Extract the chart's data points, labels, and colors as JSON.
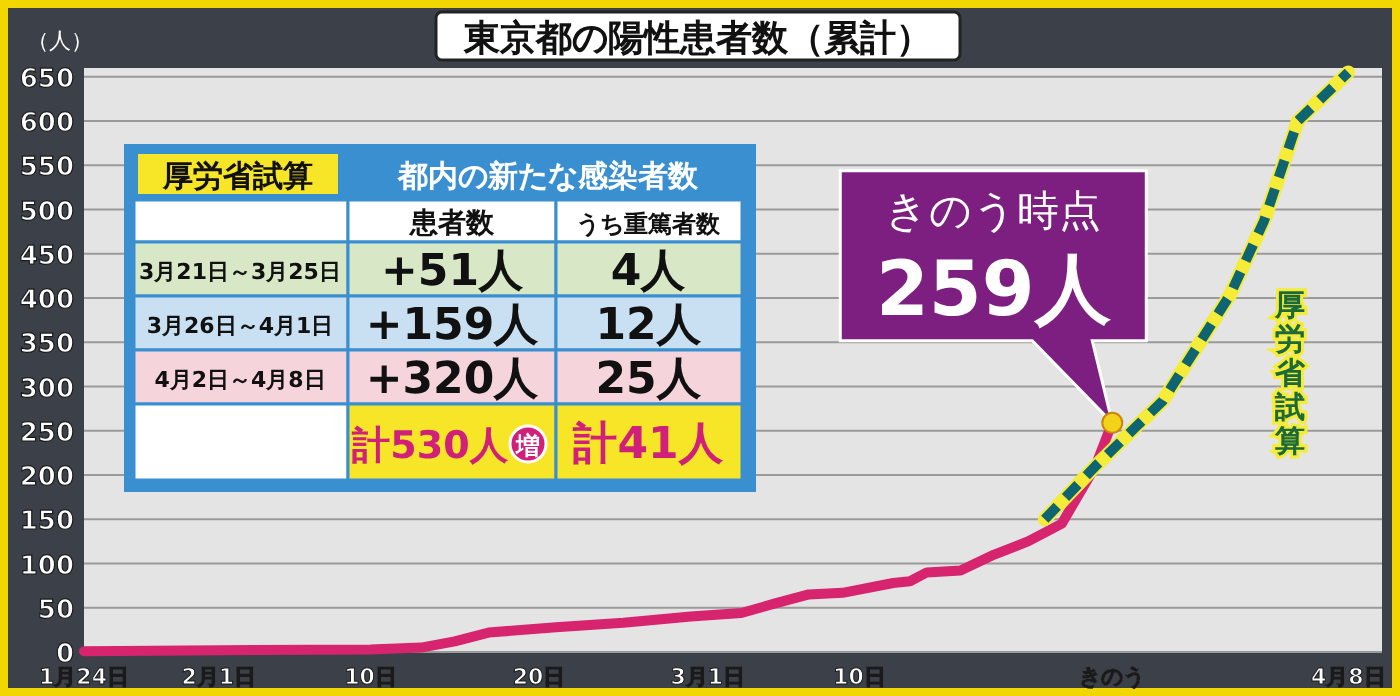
{
  "chart_data": {
    "type": "line",
    "title": "東京都の陽性患者数（累計）",
    "ylabel": "（人）",
    "xlim": [
      "--01-24",
      "--04-10"
    ],
    "xticks": [
      {
        "value": "--01-24",
        "label": "1月24日"
      },
      {
        "value": "--02-01",
        "label": "2月1日"
      },
      {
        "value": "--02-10",
        "label": "10日"
      },
      {
        "value": "--02-20",
        "label": "20日"
      },
      {
        "value": "--03-01",
        "label": "3月1日"
      },
      {
        "value": "--03-10",
        "label": "10日"
      },
      {
        "value": "--03-25",
        "label": "きのう"
      },
      {
        "value": "--04-08",
        "label": "4月8日"
      }
    ],
    "ylim": [
      0,
      660
    ],
    "yticks": [
      0,
      50,
      100,
      150,
      200,
      250,
      300,
      350,
      400,
      450,
      500,
      550,
      600,
      650
    ],
    "grid": "y",
    "series": [
      {
        "color": "#d6246e",
        "line_style": "solid",
        "x": [
          "--01-24",
          "--02-01",
          "--02-10",
          "--02-13",
          "--02-15",
          "--02-17",
          "--02-21",
          "--02-25",
          "--02-29",
          "--03-03",
          "--03-05",
          "--03-07",
          "--03-09",
          "--03-12",
          "--03-13",
          "--03-14",
          "--03-16",
          "--03-18",
          "--03-20",
          "--03-21",
          "--03-22",
          "--03-24",
          "--03-25"
        ],
        "values": [
          1,
          2,
          3,
          5,
          12,
          22,
          28,
          33,
          40,
          44,
          55,
          65,
          67,
          78,
          80,
          90,
          92,
          110,
          125,
          135,
          145,
          210,
          259
        ]
      },
      {
        "name": "厚労省試算",
        "color": "#0e6470",
        "line_style": "dashed",
        "x": [
          "--03-21",
          "--03-24",
          "--03-28",
          "--04-01",
          "--04-03",
          "--04-05",
          "--04-08"
        ],
        "values": [
          150,
          210,
          284,
          404,
          487,
          600,
          655
        ]
      }
    ],
    "annotations": [
      "厚労省試算",
      "都内の新たな感染者数",
      "患者数",
      "うち重篤者数",
      "3月21日～3月25日",
      "+51人",
      "4人",
      "3月26日～4月1日",
      "+159人",
      "12人",
      "4月2日～4月8日",
      "+320人",
      "25人",
      "計530人",
      "増",
      "計41人",
      "きのう時点",
      "259人"
    ]
  }
}
